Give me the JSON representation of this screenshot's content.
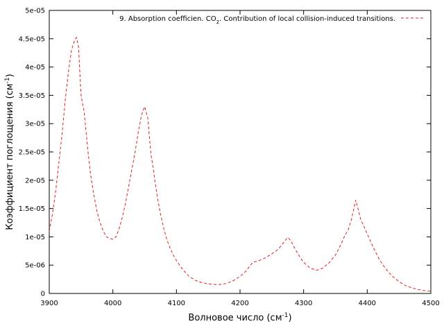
{
  "chart_data": {
    "type": "line",
    "title": "",
    "xlabel": "Волновое число (см⁻¹)",
    "ylabel": "Коэффициент поглощения (см⁻¹)",
    "xlim": [
      3900,
      4500
    ],
    "ylim": [
      0,
      5e-05
    ],
    "grid": false,
    "legend_position": "top-right",
    "x_ticks": [
      {
        "v": 3900,
        "label": "3900"
      },
      {
        "v": 4000,
        "label": "4000"
      },
      {
        "v": 4100,
        "label": "4100"
      },
      {
        "v": 4200,
        "label": "4200"
      },
      {
        "v": 4300,
        "label": "4300"
      },
      {
        "v": 4400,
        "label": "4400"
      },
      {
        "v": 4500,
        "label": "4500"
      }
    ],
    "y_ticks": [
      {
        "v": 0,
        "label": "0"
      },
      {
        "v": 5e-06,
        "label": "5e-06"
      },
      {
        "v": 1e-05,
        "label": "1e-05"
      },
      {
        "v": 1.5e-05,
        "label": "1.5e-05"
      },
      {
        "v": 2e-05,
        "label": "2e-05"
      },
      {
        "v": 2.5e-05,
        "label": "2.5e-05"
      },
      {
        "v": 3e-05,
        "label": "3e-05"
      },
      {
        "v": 3.5e-05,
        "label": "3.5e-05"
      },
      {
        "v": 4e-05,
        "label": "4e-05"
      },
      {
        "v": 4.5e-05,
        "label": "4.5e-05"
      },
      {
        "v": 5e-05,
        "label": "5e-05"
      }
    ],
    "series": [
      {
        "name": "9. Absorption coefficien. CO₂. Contribution of local collision-induced transitions.",
        "color": "#e41a1c",
        "dash": "dashed",
        "x": [
          3900,
          3905,
          3910,
          3915,
          3920,
          3925,
          3930,
          3935,
          3940,
          3943,
          3946,
          3950,
          3955,
          3960,
          3965,
          3970,
          3975,
          3980,
          3985,
          3990,
          3995,
          4000,
          4005,
          4010,
          4015,
          4020,
          4025,
          4030,
          4035,
          4040,
          4045,
          4050,
          4055,
          4058,
          4060,
          4063,
          4066,
          4070,
          4075,
          4080,
          4085,
          4090,
          4095,
          4100,
          4110,
          4120,
          4130,
          4140,
          4150,
          4160,
          4170,
          4180,
          4190,
          4200,
          4210,
          4215,
          4220,
          4230,
          4240,
          4250,
          4260,
          4265,
          4270,
          4275,
          4280,
          4285,
          4290,
          4295,
          4300,
          4310,
          4320,
          4325,
          4330,
          4340,
          4350,
          4355,
          4360,
          4365,
          4370,
          4375,
          4380,
          4382,
          4385,
          4390,
          4395,
          4400,
          4410,
          4420,
          4430,
          4440,
          4450,
          4460,
          4470,
          4480,
          4490,
          4500
        ],
        "y": [
          1.1e-05,
          1.4e-05,
          1.8e-05,
          2.3e-05,
          2.8e-05,
          3.4e-05,
          3.9e-05,
          4.3e-05,
          4.48e-05,
          4.52e-05,
          4.35e-05,
          3.5e-05,
          3.2e-05,
          2.6e-05,
          2.1e-05,
          1.75e-05,
          1.45e-05,
          1.25e-05,
          1.1e-05,
          1e-05,
          9.7e-06,
          9.6e-06,
          1e-05,
          1.15e-05,
          1.35e-05,
          1.6e-05,
          1.9e-05,
          2.2e-05,
          2.5e-05,
          2.85e-05,
          3.15e-05,
          3.3e-05,
          3.1e-05,
          2.7e-05,
          2.45e-05,
          2.25e-05,
          2e-05,
          1.7e-05,
          1.4e-05,
          1.15e-05,
          9.5e-06,
          8e-06,
          6.8e-06,
          5.8e-06,
          4.2e-06,
          3e-06,
          2.3e-06,
          1.9e-06,
          1.7e-06,
          1.6e-06,
          1.6e-06,
          1.8e-06,
          2.3e-06,
          3e-06,
          4e-06,
          4.8e-06,
          5.5e-06,
          5.8e-06,
          6.3e-06,
          7e-06,
          7.8e-06,
          8.5e-06,
          9.2e-06,
          9.9e-06,
          9.3e-06,
          8.2e-06,
          7.2e-06,
          6.3e-06,
          5.5e-06,
          4.5e-06,
          4.1e-06,
          4.2e-06,
          4.5e-06,
          5.4e-06,
          6.8e-06,
          7.8e-06,
          9e-06,
          1.03e-05,
          1.12e-05,
          1.3e-05,
          1.55e-05,
          1.65e-05,
          1.52e-05,
          1.3e-05,
          1.18e-05,
          1.05e-05,
          8e-06,
          5.8e-06,
          4.2e-06,
          3e-06,
          2.1e-06,
          1.4e-06,
          1e-06,
          7e-07,
          5e-07,
          4e-07
        ]
      }
    ]
  }
}
